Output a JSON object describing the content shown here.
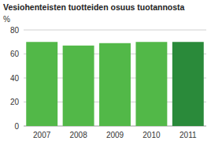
{
  "chart_data": {
    "type": "bar",
    "title": "Vesiohenteisten tuotteiden osuus tuotannosta",
    "y_label": "%",
    "categories": [
      "2007",
      "2008",
      "2009",
      "2010",
      "2011"
    ],
    "values": [
      70,
      67,
      69,
      70,
      70
    ],
    "colors": [
      "#52b848",
      "#52b848",
      "#52b848",
      "#52b848",
      "#2a8a3a"
    ],
    "ylim": [
      0,
      80
    ],
    "yticks": [
      0,
      20,
      40,
      60,
      80
    ],
    "grid": true
  }
}
